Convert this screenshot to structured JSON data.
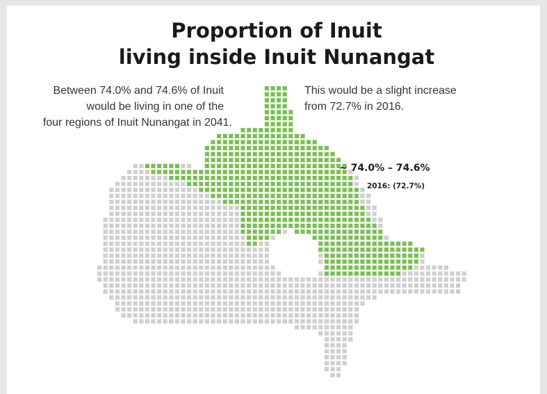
{
  "title": [
    "Proportion of Inuit",
    "living inside Inuit Nunangat"
  ],
  "left_note": [
    "Between 74.0% and 74.6% of Inuit",
    "would be living in one of the",
    "four regions of Inuit Nunangat in 2041."
  ],
  "right_note": [
    "This would be a slight increase",
    "from 72.7% in 2016."
  ],
  "region_label": "~ 74.0% – 74.6%",
  "region_label_2016": "2016: (72.7%)"
}
